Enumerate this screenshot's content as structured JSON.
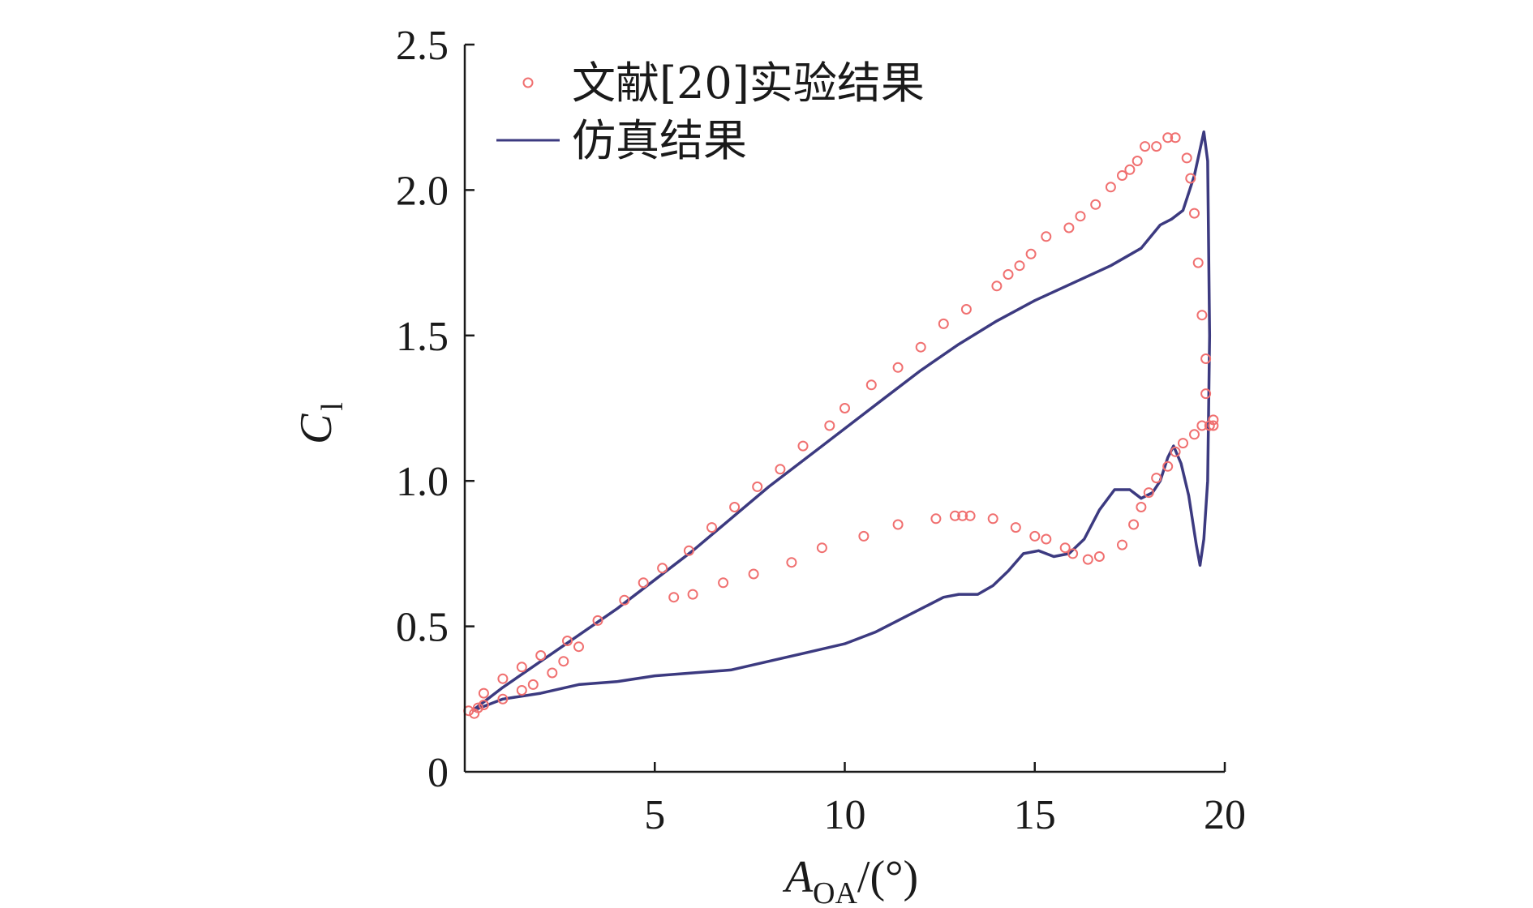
{
  "chart_data": {
    "type": "line",
    "title": "",
    "xlabel": "A",
    "xlabel_sub": "OA",
    "xlabel_unit": "/(°)",
    "ylabel": "C",
    "ylabel_sub": "l",
    "xlim": [
      0,
      20
    ],
    "ylim": [
      0,
      2.5
    ],
    "xticks": [
      5,
      10,
      15,
      20
    ],
    "xtick_labels": [
      "5",
      "10",
      "15",
      "20"
    ],
    "yticks": [
      0,
      0.5,
      1.0,
      1.5,
      2.0,
      2.5
    ],
    "ytick_labels": [
      "0",
      "0.5",
      "1.0",
      "1.5",
      "2.0",
      "2.5"
    ],
    "grid": false,
    "legend_position": "top-left",
    "colors": {
      "experiment": "#f07070",
      "simulation": "#3c3a80",
      "axis": "#1a1a1a"
    },
    "series": [
      {
        "name": "文献[20]实验结果",
        "marker": "circle",
        "points": [
          [
            0.1,
            0.21
          ],
          [
            0.25,
            0.2
          ],
          [
            0.35,
            0.22
          ],
          [
            0.5,
            0.23
          ],
          [
            0.5,
            0.27
          ],
          [
            1.0,
            0.25
          ],
          [
            1.0,
            0.32
          ],
          [
            1.5,
            0.28
          ],
          [
            1.5,
            0.36
          ],
          [
            1.8,
            0.3
          ],
          [
            2.0,
            0.4
          ],
          [
            2.3,
            0.34
          ],
          [
            2.6,
            0.38
          ],
          [
            2.7,
            0.45
          ],
          [
            3.0,
            0.43
          ],
          [
            3.5,
            0.52
          ],
          [
            4.2,
            0.59
          ],
          [
            4.7,
            0.65
          ],
          [
            5.2,
            0.7
          ],
          [
            5.5,
            0.6
          ],
          [
            5.9,
            0.76
          ],
          [
            6.0,
            0.61
          ],
          [
            6.5,
            0.84
          ],
          [
            6.8,
            0.65
          ],
          [
            7.1,
            0.91
          ],
          [
            7.6,
            0.68
          ],
          [
            7.7,
            0.98
          ],
          [
            8.3,
            1.04
          ],
          [
            8.6,
            0.72
          ],
          [
            8.9,
            1.12
          ],
          [
            9.4,
            0.77
          ],
          [
            9.6,
            1.19
          ],
          [
            10.0,
            1.25
          ],
          [
            10.5,
            0.81
          ],
          [
            10.7,
            1.33
          ],
          [
            11.4,
            0.85
          ],
          [
            11.4,
            1.39
          ],
          [
            12.0,
            1.46
          ],
          [
            12.4,
            0.87
          ],
          [
            12.6,
            1.54
          ],
          [
            12.9,
            0.88
          ],
          [
            13.1,
            0.88
          ],
          [
            13.2,
            1.59
          ],
          [
            13.3,
            0.88
          ],
          [
            13.9,
            0.87
          ],
          [
            14.0,
            1.67
          ],
          [
            14.3,
            1.71
          ],
          [
            14.5,
            0.84
          ],
          [
            14.6,
            1.74
          ],
          [
            14.9,
            1.78
          ],
          [
            15.0,
            0.81
          ],
          [
            15.3,
            0.8
          ],
          [
            15.3,
            1.84
          ],
          [
            15.8,
            0.77
          ],
          [
            15.9,
            1.87
          ],
          [
            16.0,
            0.75
          ],
          [
            16.2,
            1.91
          ],
          [
            16.4,
            0.73
          ],
          [
            16.6,
            1.95
          ],
          [
            16.7,
            0.74
          ],
          [
            17.0,
            2.01
          ],
          [
            17.3,
            0.78
          ],
          [
            17.3,
            2.05
          ],
          [
            17.5,
            2.07
          ],
          [
            17.6,
            0.85
          ],
          [
            17.7,
            2.1
          ],
          [
            17.8,
            0.91
          ],
          [
            17.9,
            2.15
          ],
          [
            18.0,
            0.96
          ],
          [
            18.2,
            2.15
          ],
          [
            18.2,
            1.01
          ],
          [
            18.5,
            1.05
          ],
          [
            18.5,
            2.18
          ],
          [
            18.7,
            1.1
          ],
          [
            18.7,
            2.18
          ],
          [
            18.9,
            1.13
          ],
          [
            19.0,
            2.11
          ],
          [
            19.1,
            2.04
          ],
          [
            19.2,
            1.16
          ],
          [
            19.2,
            1.92
          ],
          [
            19.3,
            1.75
          ],
          [
            19.4,
            1.57
          ],
          [
            19.4,
            1.19
          ],
          [
            19.5,
            1.42
          ],
          [
            19.5,
            1.3
          ],
          [
            19.6,
            1.19
          ],
          [
            19.7,
            1.21
          ],
          [
            19.7,
            1.19
          ]
        ]
      },
      {
        "name": "仿真结果",
        "marker": "line",
        "points": [
          [
            0.2,
            0.21
          ],
          [
            1.0,
            0.29
          ],
          [
            2.0,
            0.38
          ],
          [
            3.0,
            0.47
          ],
          [
            4.0,
            0.56
          ],
          [
            5.0,
            0.66
          ],
          [
            6.0,
            0.76
          ],
          [
            7.0,
            0.87
          ],
          [
            8.0,
            0.98
          ],
          [
            9.0,
            1.08
          ],
          [
            10.0,
            1.18
          ],
          [
            11.0,
            1.28
          ],
          [
            12.0,
            1.38
          ],
          [
            13.0,
            1.47
          ],
          [
            14.0,
            1.55
          ],
          [
            15.0,
            1.62
          ],
          [
            16.0,
            1.68
          ],
          [
            17.0,
            1.74
          ],
          [
            17.8,
            1.8
          ],
          [
            18.3,
            1.88
          ],
          [
            18.6,
            1.9
          ],
          [
            18.9,
            1.93
          ],
          [
            19.2,
            2.05
          ],
          [
            19.45,
            2.2
          ],
          [
            19.55,
            2.1
          ],
          [
            19.6,
            1.5
          ],
          [
            19.55,
            1.0
          ],
          [
            19.45,
            0.8
          ],
          [
            19.35,
            0.71
          ],
          [
            19.25,
            0.78
          ],
          [
            19.05,
            0.95
          ],
          [
            18.85,
            1.06
          ],
          [
            18.65,
            1.12
          ],
          [
            18.5,
            1.08
          ],
          [
            18.3,
            1.0
          ],
          [
            18.1,
            0.96
          ],
          [
            17.8,
            0.94
          ],
          [
            17.5,
            0.97
          ],
          [
            17.1,
            0.97
          ],
          [
            16.7,
            0.9
          ],
          [
            16.3,
            0.8
          ],
          [
            15.9,
            0.75
          ],
          [
            15.5,
            0.74
          ],
          [
            15.1,
            0.76
          ],
          [
            14.7,
            0.75
          ],
          [
            14.3,
            0.69
          ],
          [
            13.9,
            0.64
          ],
          [
            13.5,
            0.61
          ],
          [
            13.0,
            0.61
          ],
          [
            12.6,
            0.6
          ],
          [
            12.0,
            0.56
          ],
          [
            11.4,
            0.52
          ],
          [
            10.8,
            0.48
          ],
          [
            10.0,
            0.44
          ],
          [
            9.0,
            0.41
          ],
          [
            8.0,
            0.38
          ],
          [
            7.0,
            0.35
          ],
          [
            6.0,
            0.34
          ],
          [
            5.0,
            0.33
          ],
          [
            4.0,
            0.31
          ],
          [
            3.0,
            0.3
          ],
          [
            2.0,
            0.27
          ],
          [
            1.0,
            0.25
          ],
          [
            0.2,
            0.21
          ]
        ]
      }
    ]
  }
}
